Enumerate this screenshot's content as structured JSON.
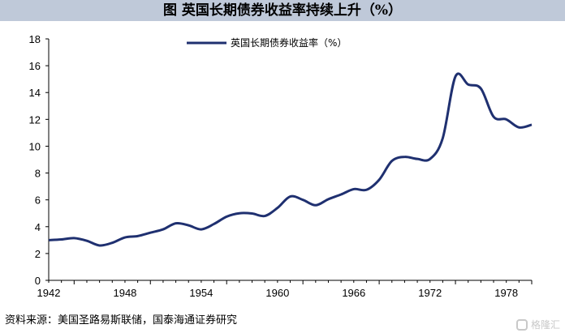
{
  "header": {
    "title": "图  英国长期债券收益率持续上升（%）"
  },
  "footer": {
    "source": "资料来源：美国圣路易斯联储，国泰海通证券研究",
    "watermark": "格隆汇"
  },
  "colors": {
    "line": "#1f3070",
    "title_bg": "#bfc9d9"
  },
  "chart_data": {
    "type": "line",
    "title": "",
    "xlabel": "",
    "ylabel": "",
    "xlim": [
      1942,
      1980
    ],
    "ylim": [
      0,
      18
    ],
    "x_ticks": [
      1942,
      1948,
      1954,
      1960,
      1966,
      1972,
      1978
    ],
    "y_ticks": [
      0,
      2,
      4,
      6,
      8,
      10,
      12,
      14,
      16,
      18
    ],
    "grid": false,
    "legend_position": "top-center",
    "series": [
      {
        "name": "英国长期债券收益率（%）",
        "x": [
          1942,
          1943,
          1944,
          1945,
          1946,
          1947,
          1948,
          1949,
          1950,
          1951,
          1952,
          1953,
          1954,
          1955,
          1956,
          1957,
          1958,
          1959,
          1960,
          1961,
          1962,
          1963,
          1964,
          1965,
          1966,
          1967,
          1968,
          1969,
          1970,
          1971,
          1972,
          1973,
          1974,
          1975,
          1976,
          1977,
          1978,
          1979,
          1980
        ],
        "y": [
          3.0,
          3.05,
          3.15,
          2.95,
          2.6,
          2.8,
          3.2,
          3.3,
          3.55,
          3.8,
          4.25,
          4.1,
          3.8,
          4.2,
          4.75,
          5.0,
          4.98,
          4.8,
          5.4,
          6.25,
          6.0,
          5.6,
          6.05,
          6.4,
          6.8,
          6.75,
          7.5,
          8.9,
          9.2,
          9.05,
          9.05,
          10.6,
          15.2,
          14.6,
          14.3,
          12.2,
          12.0,
          11.4,
          11.6
        ]
      }
    ]
  }
}
